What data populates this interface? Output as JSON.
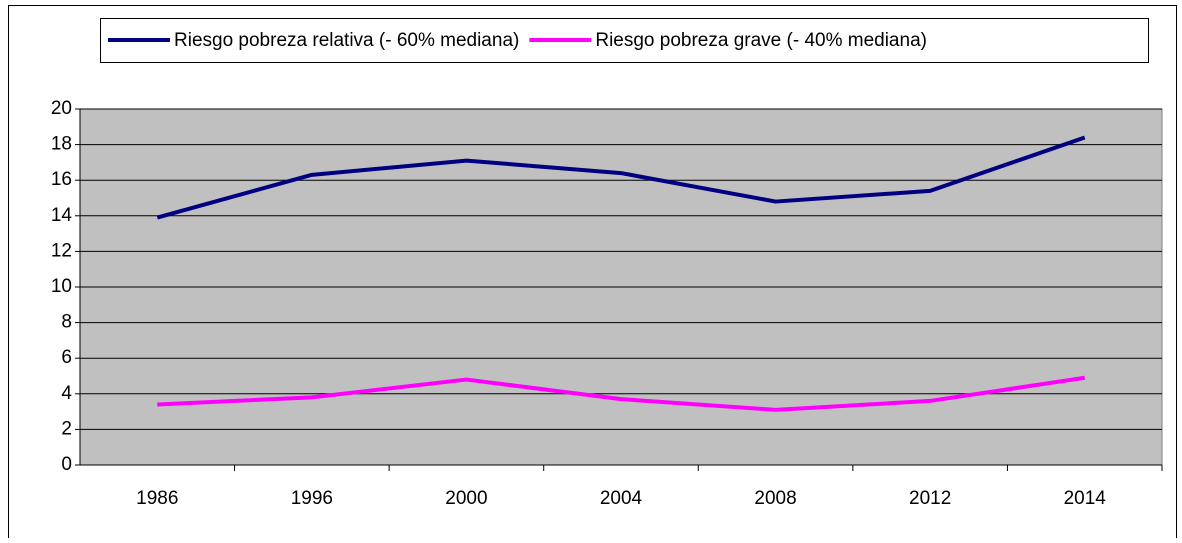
{
  "chart_data": {
    "type": "line",
    "categories": [
      "1986",
      "1996",
      "2000",
      "2004",
      "2008",
      "2012",
      "2014"
    ],
    "series": [
      {
        "name": "Riesgo pobreza relativa (- 60% mediana)",
        "color": "#000080",
        "values": [
          13.9,
          16.3,
          17.1,
          16.4,
          14.8,
          15.4,
          18.4
        ]
      },
      {
        "name": "Riesgo pobreza grave (- 40% mediana)",
        "color": "#ff00ff",
        "values": [
          3.4,
          3.8,
          4.8,
          3.7,
          3.1,
          3.6,
          4.9
        ]
      }
    ],
    "ylim": [
      0,
      20
    ],
    "yticks": [
      0,
      2,
      4,
      6,
      8,
      10,
      12,
      14,
      16,
      18,
      20
    ],
    "grid": true,
    "legend": "top",
    "plot_background": "#c0c0c0"
  }
}
